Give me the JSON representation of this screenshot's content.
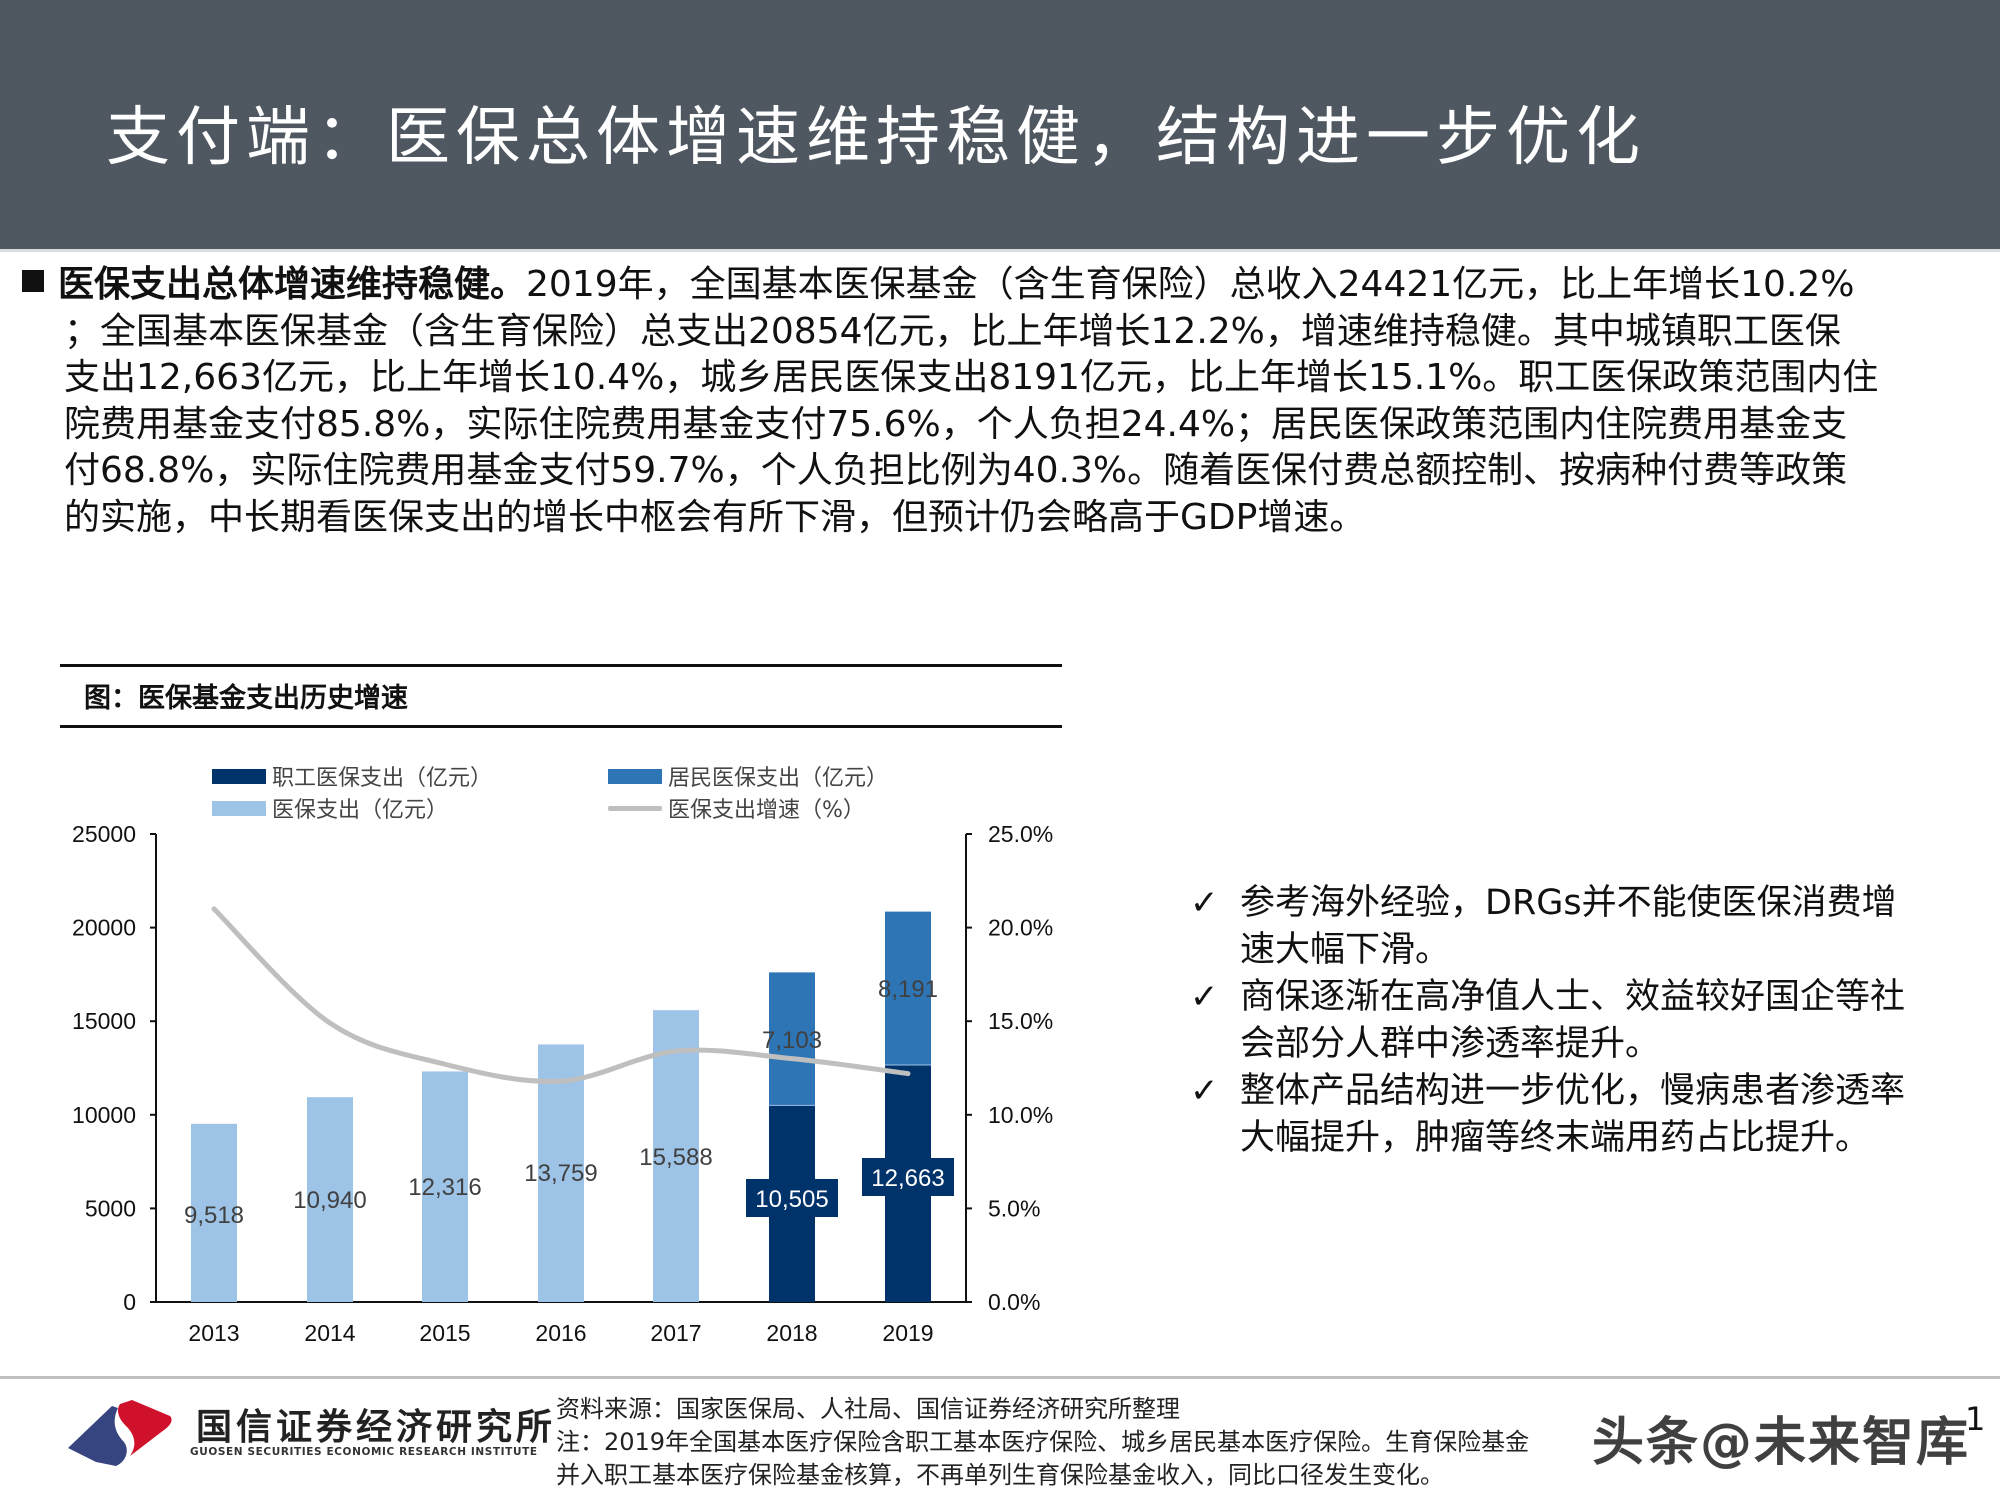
{
  "header": {
    "title": "支付端：医保总体增速维持稳健，结构进一步优化",
    "bg_color": "#4f5861"
  },
  "body": {
    "lead": "医保支出总体增速维持稳健。",
    "lines": [
      "2019年，全国基本医保基金（含生育保险）总收入24421亿元，比上年增长10.2%",
      "；全国基本医保基金（含生育保险）总支出20854亿元，比上年增长12.2%，增速维持稳健。其中城镇职工医保",
      "支出12,663亿元，比上年增长10.4%，城乡居民医保支出8191亿元，比上年增长15.1%。职工医保政策范围内住",
      "院费用基金支付85.8%，实际住院费用基金支付75.6%，个人负担24.4%；居民医保政策范围内住院费用基金支",
      "付68.8%，实际住院费用基金支付59.7%，个人负担比例为40.3%。随着医保付费总额控制、按病种付费等政策",
      "的实施，中长期看医保支出的增长中枢会有所下滑，但预计仍会略高于GDP增速。"
    ]
  },
  "figure": {
    "title": "图：医保基金支出历史增速",
    "legend": [
      {
        "label": "职工医保支出（亿元）",
        "color": "#00336a",
        "kind": "bar"
      },
      {
        "label": "居民医保支出（亿元）",
        "color": "#2e75b6",
        "kind": "bar"
      },
      {
        "label": "医保支出（亿元）",
        "color": "#9dc3e6",
        "kind": "bar"
      },
      {
        "label": "医保支出增速（%）",
        "color": "#bfbfbf",
        "kind": "line"
      }
    ]
  },
  "chart_data": {
    "type": "bar",
    "title": "图：医保基金支出历史增速",
    "categories": [
      "2013",
      "2014",
      "2015",
      "2016",
      "2017",
      "2018",
      "2019"
    ],
    "series": [
      {
        "name": "医保支出（亿元）",
        "type": "bar",
        "axis": "left",
        "color": "#9dc3e6",
        "values": [
          9518,
          10940,
          12316,
          13759,
          15588,
          null,
          null
        ],
        "labels": [
          "9,518",
          "10,940",
          "12,316",
          "13,759",
          "15,588",
          null,
          null
        ]
      },
      {
        "name": "职工医保支出（亿元）",
        "type": "bar",
        "stack": "total",
        "axis": "left",
        "color": "#00336a",
        "values": [
          null,
          null,
          null,
          null,
          null,
          10505,
          12663
        ],
        "labels": [
          null,
          null,
          null,
          null,
          null,
          "10,505",
          "12,663"
        ]
      },
      {
        "name": "居民医保支出（亿元）",
        "type": "bar",
        "stack": "total",
        "axis": "left",
        "color": "#2e75b6",
        "values": [
          null,
          null,
          null,
          null,
          null,
          7103,
          8191
        ],
        "labels": [
          null,
          null,
          null,
          null,
          null,
          "7,103",
          "8,191"
        ]
      },
      {
        "name": "医保支出增速（%）",
        "type": "line",
        "axis": "right",
        "color": "#bfbfbf",
        "smooth": true,
        "values": [
          21.0,
          14.9,
          12.7,
          11.8,
          13.4,
          13.0,
          12.2
        ]
      }
    ],
    "left_axis": {
      "min": 0,
      "max": 25000,
      "ticks": [
        "0",
        "5000",
        "10000",
        "15000",
        "20000",
        "25000"
      ]
    },
    "right_axis": {
      "min": 0,
      "max": 25,
      "ticks": [
        "0.0%",
        "5.0%",
        "10.0%",
        "15.0%",
        "20.0%",
        "25.0%"
      ]
    },
    "xlabel": "",
    "ylabel": "",
    "grid": false,
    "legend_position": "top"
  },
  "side_notes": [
    {
      "icon": "✓",
      "text": "参考海外经验，DRGs并不能使医保消费增速大幅下滑。"
    },
    {
      "icon": "✓",
      "text": "商保逐渐在高净值人士、效益较好国企等社会部分人群中渗透率提升。"
    },
    {
      "icon": "✓",
      "text": "整体产品结构进一步优化，慢病患者渗透率大幅提升，肿瘤等终末端用药占比提升。"
    }
  ],
  "footer": {
    "logo_cn": "国信证券经济研究所",
    "logo_en": "GUOSEN SECURITIES ECONOMIC RESEARCH INSTITUTE",
    "source": "资料来源：国家医保局、人社局、国信证券经济研究所整理",
    "note_line1": "注：2019年全国基本医疗保险含职工基本医疗保险、城乡居民基本医疗保险。生育保险基金",
    "note_line2": "并入职工基本医疗保险基金核算，不再单列生育保险基金收入，同比口径发生变化。",
    "watermark": "头条@未来智库",
    "page_number": "1"
  }
}
